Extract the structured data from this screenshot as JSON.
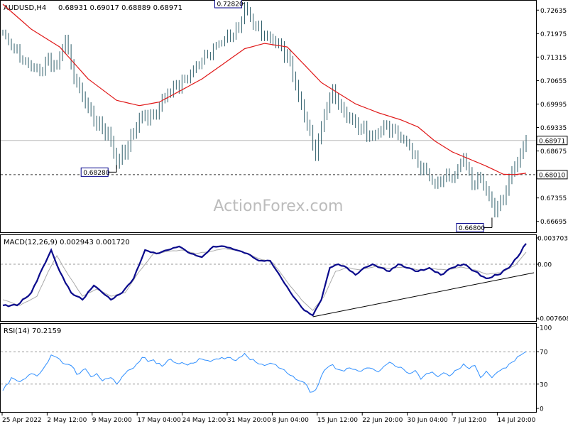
{
  "header": {
    "symbol": "AUDUSD,H4",
    "ohlc": "0.68931 0.69017 0.68889 0.68971",
    "macd_label": "MACD(12,26,9) 0.002943 0.001720",
    "rsi_label": "RSI(14) 70.2159",
    "watermark": "ActionForex.com"
  },
  "colors": {
    "bars": "#2f5f6b",
    "ma": "#e01818",
    "macd": "#0a0a8c",
    "signal": "#aaaaaa",
    "rsi": "#2f8fff",
    "ref_line": "#bbbbbb",
    "label_border": "#00008b"
  },
  "chart_data": [
    {
      "type": "line",
      "panel": "price",
      "ylim": [
        0.6639,
        0.7288
      ],
      "y_ticks": [
        "0.72635",
        "0.71975",
        "0.71315",
        "0.70655",
        "0.69995",
        "0.69335",
        "0.68675",
        "0.68015",
        "0.67355",
        "0.66695"
      ],
      "current_price_label": "0.68971",
      "level_label": "0.68010",
      "annotations": [
        {
          "label": "0.72820",
          "value": 0.7282,
          "bar": 85
        },
        {
          "label": "0.68280",
          "value": 0.6828,
          "bar": 40
        },
        {
          "label": "0.66800",
          "value": 0.668,
          "bar": 172
        }
      ],
      "x_tick_labels": [
        "25 Apr 2022",
        "2 May 12:00",
        "9 May 20:00",
        "17 May 04:00",
        "24 May 12:00",
        "31 May 20:00",
        "8 Jun 04:00",
        "15 Jun 12:00",
        "22 Jun 20:00",
        "30 Jun 04:00",
        "7 Jul 12:00",
        "14 Jul 20:00"
      ],
      "close_anchors": [
        [
          0,
          0.72
        ],
        [
          3,
          0.716
        ],
        [
          8,
          0.712
        ],
        [
          13,
          0.709
        ],
        [
          15,
          0.712
        ],
        [
          19,
          0.711
        ],
        [
          22,
          0.718
        ],
        [
          25,
          0.707
        ],
        [
          28,
          0.702
        ],
        [
          33,
          0.694
        ],
        [
          37,
          0.692
        ],
        [
          40,
          0.6833
        ],
        [
          44,
          0.688
        ],
        [
          48,
          0.696
        ],
        [
          53,
          0.697
        ],
        [
          58,
          0.703
        ],
        [
          64,
          0.707
        ],
        [
          70,
          0.712
        ],
        [
          76,
          0.717
        ],
        [
          83,
          0.721
        ],
        [
          85,
          0.7275
        ],
        [
          88,
          0.722
        ],
        [
          93,
          0.719
        ],
        [
          97,
          0.717
        ],
        [
          101,
          0.712
        ],
        [
          104,
          0.702
        ],
        [
          107,
          0.694
        ],
        [
          110,
          0.6855
        ],
        [
          113,
          0.697
        ],
        [
          116,
          0.704
        ],
        [
          119,
          0.699
        ],
        [
          122,
          0.696
        ],
        [
          126,
          0.693
        ],
        [
          130,
          0.691
        ],
        [
          135,
          0.694
        ],
        [
          139,
          0.691
        ],
        [
          143,
          0.688
        ],
        [
          146,
          0.683
        ],
        [
          149,
          0.681
        ],
        [
          152,
          0.677
        ],
        [
          155,
          0.679
        ],
        [
          159,
          0.68
        ],
        [
          162,
          0.685
        ],
        [
          165,
          0.677
        ],
        [
          168,
          0.679
        ],
        [
          171,
          0.674
        ],
        [
          173,
          0.6695
        ],
        [
          176,
          0.673
        ],
        [
          179,
          0.681
        ],
        [
          182,
          0.686
        ],
        [
          184,
          0.6897
        ]
      ],
      "ma_anchors": [
        [
          0,
          0.728
        ],
        [
          10,
          0.721
        ],
        [
          20,
          0.716
        ],
        [
          30,
          0.707
        ],
        [
          40,
          0.701
        ],
        [
          48,
          0.6995
        ],
        [
          55,
          0.7005
        ],
        [
          62,
          0.7035
        ],
        [
          70,
          0.707
        ],
        [
          78,
          0.7115
        ],
        [
          85,
          0.7155
        ],
        [
          92,
          0.717
        ],
        [
          100,
          0.716
        ],
        [
          106,
          0.711
        ],
        [
          112,
          0.706
        ],
        [
          118,
          0.703
        ],
        [
          124,
          0.7
        ],
        [
          132,
          0.6975
        ],
        [
          140,
          0.6955
        ],
        [
          146,
          0.6935
        ],
        [
          152,
          0.6895
        ],
        [
          158,
          0.6865
        ],
        [
          164,
          0.6845
        ],
        [
          170,
          0.6825
        ],
        [
          176,
          0.6802
        ],
        [
          180,
          0.6801
        ],
        [
          184,
          0.6805
        ]
      ]
    },
    {
      "type": "line",
      "panel": "macd",
      "ylim": [
        -0.008,
        0.0041
      ],
      "y_ticks": [
        "0.003703",
        "0.00",
        "-0.007608"
      ],
      "series_values": [
        [
          "macd",
          "0.002943"
        ],
        [
          "signal",
          "0.001720"
        ]
      ],
      "macd_anchors": [
        [
          0,
          -0.0058
        ],
        [
          5,
          -0.0058
        ],
        [
          10,
          -0.004
        ],
        [
          14,
          -0.0005
        ],
        [
          17,
          0.002
        ],
        [
          20,
          -0.001
        ],
        [
          24,
          -0.004
        ],
        [
          28,
          -0.005
        ],
        [
          32,
          -0.003
        ],
        [
          35,
          -0.004
        ],
        [
          38,
          -0.005
        ],
        [
          42,
          -0.004
        ],
        [
          46,
          -0.002
        ],
        [
          50,
          0.002
        ],
        [
          54,
          0.0015
        ],
        [
          58,
          0.002
        ],
        [
          62,
          0.0025
        ],
        [
          66,
          0.0015
        ],
        [
          70,
          0.001
        ],
        [
          74,
          0.0025
        ],
        [
          78,
          0.0025
        ],
        [
          82,
          0.002
        ],
        [
          86,
          0.0015
        ],
        [
          90,
          0.0005
        ],
        [
          94,
          0.0005
        ],
        [
          98,
          -0.002
        ],
        [
          102,
          -0.0045
        ],
        [
          106,
          -0.0065
        ],
        [
          109,
          -0.0072
        ],
        [
          112,
          -0.005
        ],
        [
          115,
          -0.0005
        ],
        [
          118,
          0.0
        ],
        [
          121,
          -0.0005
        ],
        [
          124,
          -0.0015
        ],
        [
          127,
          -0.0005
        ],
        [
          130,
          0.0
        ],
        [
          133,
          -0.0005
        ],
        [
          136,
          -0.001
        ],
        [
          139,
          0.0
        ],
        [
          142,
          -0.0005
        ],
        [
          146,
          -0.001
        ],
        [
          150,
          -0.0005
        ],
        [
          154,
          -0.0015
        ],
        [
          158,
          -0.0005
        ],
        [
          162,
          0.0
        ],
        [
          166,
          -0.001
        ],
        [
          170,
          -0.002
        ],
        [
          174,
          -0.0015
        ],
        [
          178,
          -0.0005
        ],
        [
          181,
          0.001
        ],
        [
          184,
          0.0029
        ]
      ],
      "signal_anchors": [
        [
          0,
          -0.005
        ],
        [
          6,
          -0.0058
        ],
        [
          12,
          -0.0045
        ],
        [
          16,
          -0.001
        ],
        [
          19,
          0.0012
        ],
        [
          23,
          -0.0015
        ],
        [
          28,
          -0.0045
        ],
        [
          33,
          -0.0035
        ],
        [
          38,
          -0.0045
        ],
        [
          43,
          -0.004
        ],
        [
          48,
          -0.001
        ],
        [
          53,
          0.0015
        ],
        [
          58,
          0.0018
        ],
        [
          63,
          0.002
        ],
        [
          68,
          0.0015
        ],
        [
          73,
          0.0018
        ],
        [
          78,
          0.0022
        ],
        [
          84,
          0.0018
        ],
        [
          90,
          0.0008
        ],
        [
          95,
          0.0002
        ],
        [
          100,
          -0.0025
        ],
        [
          105,
          -0.005
        ],
        [
          109,
          -0.0065
        ],
        [
          113,
          -0.0045
        ],
        [
          117,
          -0.001
        ],
        [
          121,
          -0.0005
        ],
        [
          126,
          -0.0008
        ],
        [
          131,
          -0.0003
        ],
        [
          136,
          -0.0006
        ],
        [
          141,
          -0.0004
        ],
        [
          146,
          -0.0008
        ],
        [
          151,
          -0.0006
        ],
        [
          156,
          -0.0008
        ],
        [
          161,
          -0.0004
        ],
        [
          166,
          -0.0008
        ],
        [
          170,
          -0.0014
        ],
        [
          175,
          -0.0012
        ],
        [
          180,
          -0.0002
        ],
        [
          184,
          0.0017
        ]
      ],
      "trendline": [
        [
          109,
          -0.0074
        ],
        [
          186,
          -0.0012
        ]
      ]
    },
    {
      "type": "line",
      "panel": "rsi",
      "ylim": [
        0,
        100
      ],
      "y_ticks": [
        "100",
        "70",
        "30",
        "0"
      ],
      "reference_levels": [
        70,
        30
      ],
      "rsi_anchors": [
        [
          0,
          22
        ],
        [
          3,
          38
        ],
        [
          6,
          33
        ],
        [
          10,
          43
        ],
        [
          12,
          40
        ],
        [
          14,
          48
        ],
        [
          17,
          66
        ],
        [
          19,
          63
        ],
        [
          21,
          56
        ],
        [
          24,
          53
        ],
        [
          26,
          42
        ],
        [
          29,
          49
        ],
        [
          31,
          39
        ],
        [
          33,
          43
        ],
        [
          35,
          34
        ],
        [
          38,
          38
        ],
        [
          40,
          30
        ],
        [
          43,
          43
        ],
        [
          46,
          50
        ],
        [
          49,
          63
        ],
        [
          51,
          58
        ],
        [
          53,
          60
        ],
        [
          56,
          52
        ],
        [
          59,
          61
        ],
        [
          61,
          56
        ],
        [
          64,
          55
        ],
        [
          67,
          56
        ],
        [
          70,
          61
        ],
        [
          73,
          58
        ],
        [
          76,
          61
        ],
        [
          79,
          63
        ],
        [
          82,
          59
        ],
        [
          84,
          64
        ],
        [
          85,
          68
        ],
        [
          87,
          60
        ],
        [
          89,
          57
        ],
        [
          92,
          53
        ],
        [
          95,
          55
        ],
        [
          98,
          49
        ],
        [
          101,
          41
        ],
        [
          103,
          36
        ],
        [
          106,
          32
        ],
        [
          108,
          20
        ],
        [
          110,
          23
        ],
        [
          112,
          40
        ],
        [
          114,
          50
        ],
        [
          116,
          54
        ],
        [
          118,
          48
        ],
        [
          120,
          46
        ],
        [
          122,
          50
        ],
        [
          124,
          48
        ],
        [
          126,
          46
        ],
        [
          128,
          50
        ],
        [
          130,
          49
        ],
        [
          132,
          45
        ],
        [
          134,
          52
        ],
        [
          136,
          57
        ],
        [
          138,
          52
        ],
        [
          141,
          48
        ],
        [
          143,
          43
        ],
        [
          145,
          47
        ],
        [
          147,
          36
        ],
        [
          149,
          43
        ],
        [
          151,
          45
        ],
        [
          153,
          39
        ],
        [
          155,
          44
        ],
        [
          157,
          40
        ],
        [
          160,
          48
        ],
        [
          162,
          55
        ],
        [
          164,
          49
        ],
        [
          166,
          53
        ],
        [
          168,
          38
        ],
        [
          170,
          46
        ],
        [
          172,
          38
        ],
        [
          174,
          45
        ],
        [
          177,
          50
        ],
        [
          179,
          57
        ],
        [
          181,
          64
        ],
        [
          183,
          68
        ],
        [
          184,
          70
        ]
      ]
    }
  ]
}
